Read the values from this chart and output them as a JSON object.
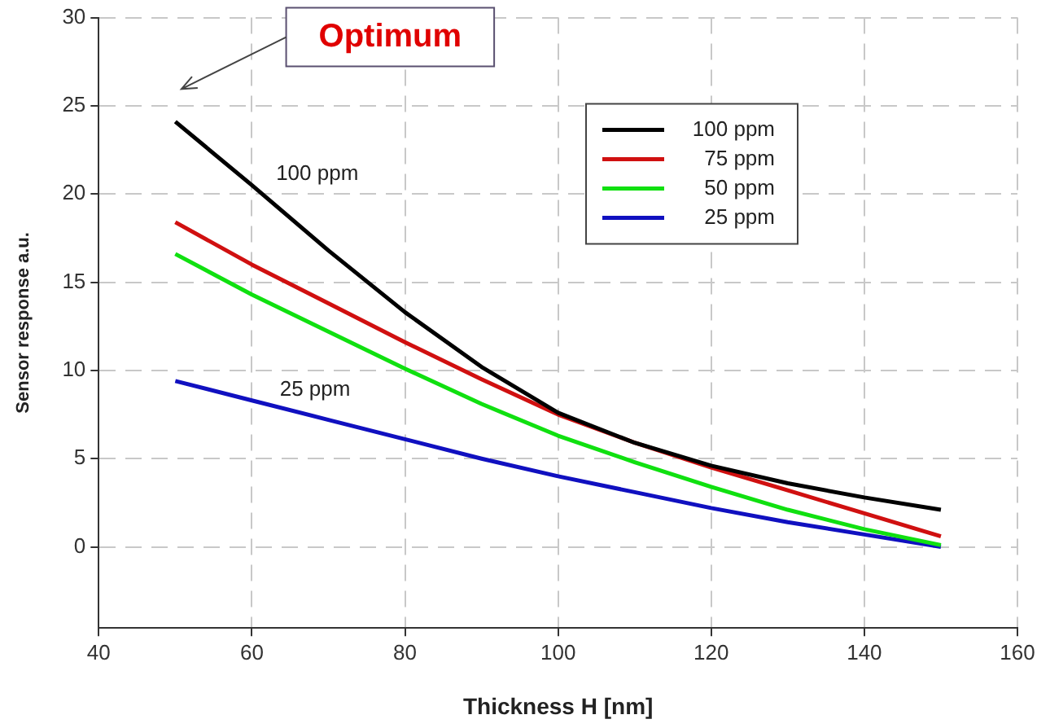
{
  "chart_data": {
    "type": "line",
    "xlabel": "Thickness H [nm]",
    "ylabel": "Sensor response a.u.",
    "x": [
      50,
      60,
      70,
      80,
      90,
      100,
      110,
      120,
      130,
      140,
      150
    ],
    "series": [
      {
        "name": "100 ppm",
        "color": "#000000",
        "values": [
          24.1,
          20.5,
          16.8,
          13.3,
          10.2,
          7.6,
          5.9,
          4.6,
          3.6,
          2.8,
          2.1
        ]
      },
      {
        "name": "75 ppm",
        "color": "#d01010",
        "values": [
          18.4,
          16.0,
          13.8,
          11.6,
          9.5,
          7.5,
          5.9,
          4.5,
          3.2,
          1.9,
          0.6
        ]
      },
      {
        "name": "50 ppm",
        "color": "#10e010",
        "values": [
          16.6,
          14.3,
          12.2,
          10.1,
          8.1,
          6.3,
          4.8,
          3.4,
          2.1,
          1.0,
          0.1
        ]
      },
      {
        "name": "25 ppm",
        "color": "#1010c0",
        "values": [
          9.4,
          8.3,
          7.2,
          6.1,
          5.0,
          4.0,
          3.1,
          2.2,
          1.4,
          0.7,
          0.0
        ]
      }
    ],
    "xlim": [
      40,
      160
    ],
    "xticks": [
      40,
      60,
      80,
      100,
      120,
      140,
      160
    ],
    "ylim": [
      -4.6,
      30
    ],
    "yticks": [
      0,
      5,
      10,
      15,
      20,
      25,
      30
    ],
    "grid": true,
    "legend": "top right",
    "marker": "none",
    "line_style": "solid",
    "annotations": [
      "Optimum",
      "100 ppm",
      "25 ppm"
    ]
  }
}
